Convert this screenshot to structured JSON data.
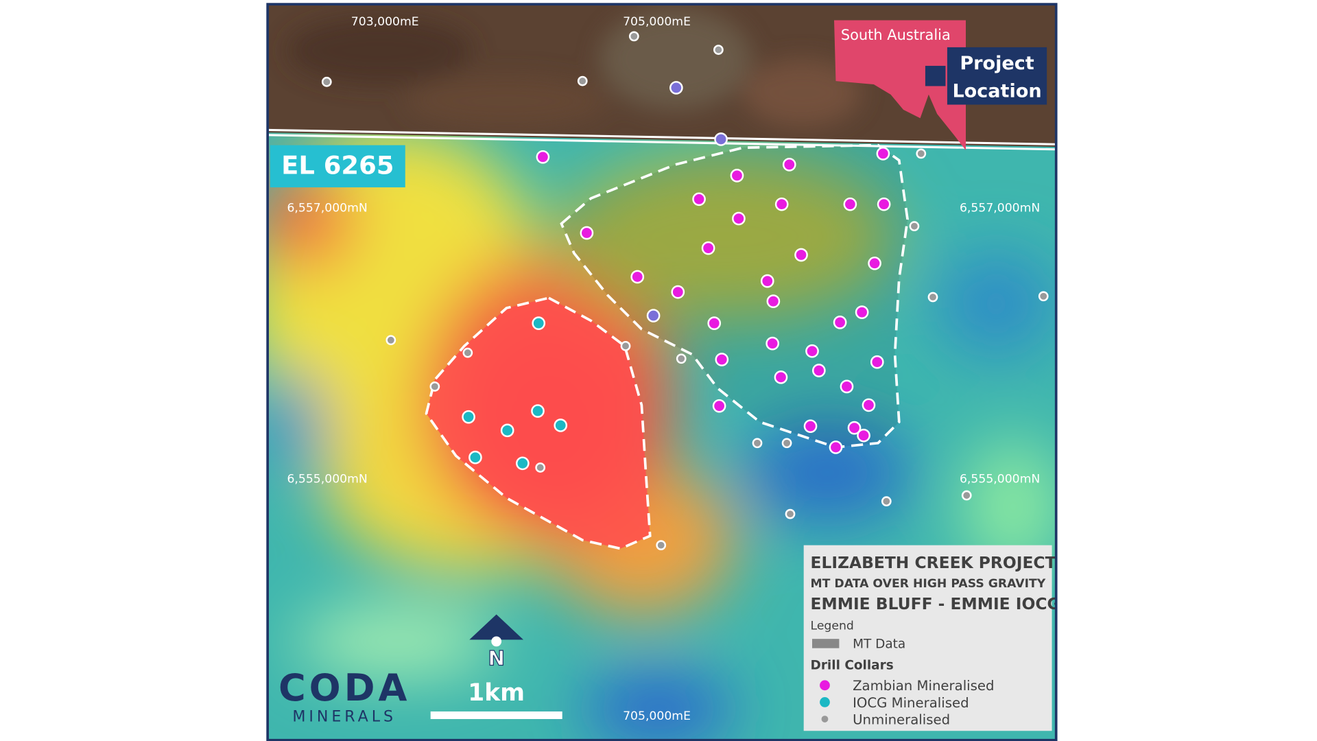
{
  "grid_labels": {
    "easting": [
      "703,000mE",
      "705,000mE",
      "705,000mE"
    ],
    "northing": [
      "6,557,000mN",
      "6,557,000mN",
      "6,555,000mN",
      "6,555,000mN"
    ]
  },
  "inset": {
    "state": "South Australia",
    "marker": [
      "Project",
      "Location"
    ]
  },
  "tenement": "EL 6265",
  "legend": {
    "title": "ELIZABETH CREEK PROJECT",
    "subtitle": "MT DATA OVER HIGH PASS GRAVITY",
    "project": "EMMIE BLUFF - EMMIE IOCG",
    "heading": "Legend",
    "mt": "MT Data",
    "collars_heading": "Drill Collars",
    "items": [
      "Zambian Mineralised",
      "IOCG Mineralised",
      "Unmineralised"
    ]
  },
  "north": "N",
  "scale": "1km",
  "logo": {
    "name": "CODA",
    "sub": "MINERALS"
  }
}
